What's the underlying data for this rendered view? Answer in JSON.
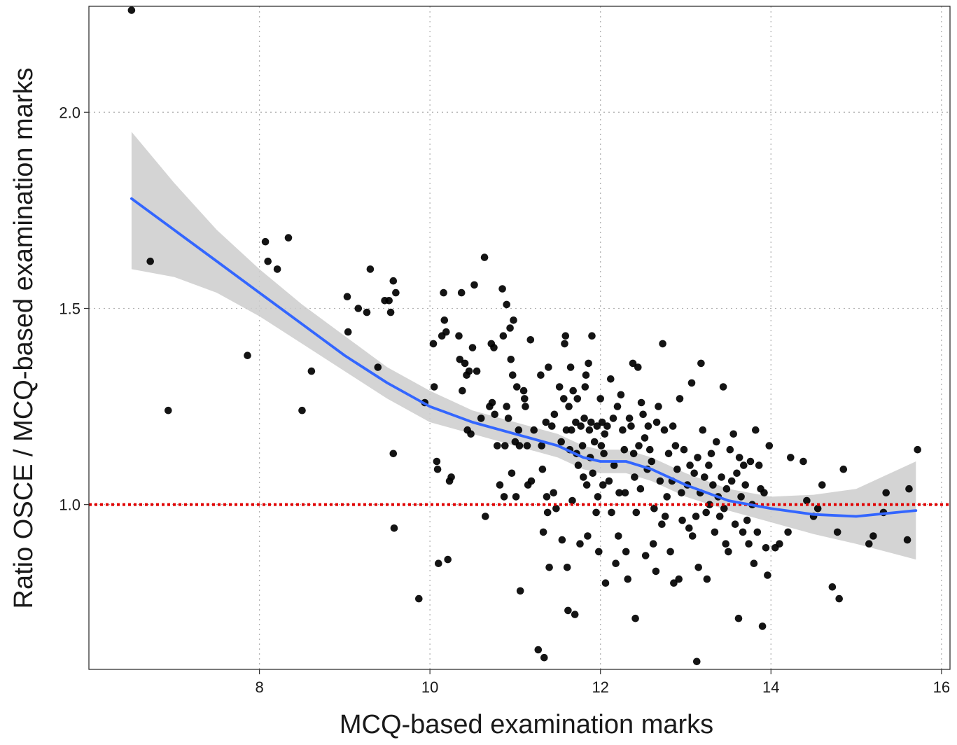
{
  "chart_data": {
    "type": "scatter",
    "title": "",
    "xlabel": "MCQ-based examination marks",
    "ylabel": "Ratio OSCE / MCQ-based examination marks",
    "xlim": [
      6.0,
      16.1
    ],
    "ylim": [
      0.58,
      2.27
    ],
    "x_ticks": [
      8,
      10,
      12,
      14,
      16
    ],
    "y_ticks": [
      1.0,
      1.5,
      2.0
    ],
    "x_tick_labels": [
      "8",
      "10",
      "12",
      "14",
      "16"
    ],
    "y_tick_labels": [
      "1.0",
      "1.5",
      "2.0"
    ],
    "grid": "dotted",
    "reference_line": {
      "y": 1.0,
      "color": "#e00000",
      "style": "dotted"
    },
    "colors": {
      "points": "#000000",
      "smooth_line": "#3366ff",
      "confidence_band": "#cccccc"
    },
    "points": [
      [
        6.5,
        2.26
      ],
      [
        6.72,
        1.62
      ],
      [
        6.93,
        1.24
      ],
      [
        7.86,
        1.38
      ],
      [
        8.07,
        1.67
      ],
      [
        8.1,
        1.62
      ],
      [
        8.21,
        1.6
      ],
      [
        8.34,
        1.68
      ],
      [
        8.5,
        1.24
      ],
      [
        8.61,
        1.34
      ],
      [
        9.03,
        1.53
      ],
      [
        9.04,
        1.44
      ],
      [
        9.16,
        1.5
      ],
      [
        9.26,
        1.49
      ],
      [
        9.3,
        1.6
      ],
      [
        9.39,
        1.35
      ],
      [
        9.47,
        1.52
      ],
      [
        9.52,
        1.52
      ],
      [
        9.54,
        1.49
      ],
      [
        9.57,
        1.57
      ],
      [
        9.6,
        1.54
      ],
      [
        9.57,
        1.13
      ],
      [
        9.58,
        0.94
      ],
      [
        9.87,
        0.76
      ],
      [
        9.94,
        1.26
      ],
      [
        10.04,
        1.41
      ],
      [
        10.05,
        1.3
      ],
      [
        10.08,
        1.11
      ],
      [
        10.09,
        1.09
      ],
      [
        10.1,
        0.85
      ],
      [
        10.14,
        1.43
      ],
      [
        10.16,
        1.54
      ],
      [
        10.17,
        1.47
      ],
      [
        10.19,
        1.44
      ],
      [
        10.21,
        0.86
      ],
      [
        10.23,
        1.06
      ],
      [
        10.25,
        1.07
      ],
      [
        10.34,
        1.43
      ],
      [
        10.35,
        1.37
      ],
      [
        10.37,
        1.54
      ],
      [
        10.38,
        1.29
      ],
      [
        10.41,
        1.36
      ],
      [
        10.43,
        1.33
      ],
      [
        10.44,
        1.19
      ],
      [
        10.46,
        1.34
      ],
      [
        10.48,
        1.18
      ],
      [
        10.5,
        1.4
      ],
      [
        10.52,
        1.56
      ],
      [
        10.55,
        1.34
      ],
      [
        10.6,
        1.22
      ],
      [
        10.64,
        1.63
      ],
      [
        10.65,
        0.97
      ],
      [
        10.7,
        1.25
      ],
      [
        10.72,
        1.41
      ],
      [
        10.73,
        1.26
      ],
      [
        10.75,
        1.4
      ],
      [
        10.76,
        1.23
      ],
      [
        10.79,
        1.15
      ],
      [
        10.82,
        1.05
      ],
      [
        10.85,
        1.55
      ],
      [
        10.86,
        1.43
      ],
      [
        10.87,
        1.02
      ],
      [
        10.88,
        1.15
      ],
      [
        10.9,
        1.51
      ],
      [
        10.9,
        1.25
      ],
      [
        10.92,
        1.22
      ],
      [
        10.94,
        1.45
      ],
      [
        10.95,
        1.37
      ],
      [
        10.96,
        1.08
      ],
      [
        10.97,
        1.33
      ],
      [
        10.98,
        1.47
      ],
      [
        11.0,
        1.16
      ],
      [
        11.01,
        1.02
      ],
      [
        11.02,
        1.3
      ],
      [
        11.04,
        1.19
      ],
      [
        11.05,
        1.15
      ],
      [
        11.06,
        0.78
      ],
      [
        11.1,
        1.29
      ],
      [
        11.11,
        1.27
      ],
      [
        11.12,
        1.25
      ],
      [
        11.14,
        1.15
      ],
      [
        11.15,
        1.05
      ],
      [
        11.18,
        1.42
      ],
      [
        11.19,
        1.06
      ],
      [
        11.22,
        1.19
      ],
      [
        11.27,
        0.63
      ],
      [
        11.3,
        1.33
      ],
      [
        11.31,
        1.15
      ],
      [
        11.32,
        1.09
      ],
      [
        11.33,
        0.93
      ],
      [
        11.34,
        0.61
      ],
      [
        11.36,
        1.21
      ],
      [
        11.37,
        1.02
      ],
      [
        11.38,
        0.98
      ],
      [
        11.39,
        1.35
      ],
      [
        11.4,
        0.84
      ],
      [
        11.43,
        1.2
      ],
      [
        11.45,
        1.03
      ],
      [
        11.46,
        1.23
      ],
      [
        11.48,
        0.99
      ],
      [
        11.52,
        1.3
      ],
      [
        11.54,
        1.16
      ],
      [
        11.55,
        0.91
      ],
      [
        11.57,
        1.27
      ],
      [
        11.58,
        1.41
      ],
      [
        11.59,
        1.43
      ],
      [
        11.6,
        1.19
      ],
      [
        11.61,
        0.84
      ],
      [
        11.62,
        0.73
      ],
      [
        11.63,
        1.25
      ],
      [
        11.64,
        1.14
      ],
      [
        11.65,
        1.35
      ],
      [
        11.66,
        1.19
      ],
      [
        11.67,
        1.01
      ],
      [
        11.68,
        1.29
      ],
      [
        11.7,
        0.72
      ],
      [
        11.71,
        1.21
      ],
      [
        11.72,
        1.13
      ],
      [
        11.73,
        1.27
      ],
      [
        11.74,
        1.1
      ],
      [
        11.76,
        0.9
      ],
      [
        11.77,
        1.2
      ],
      [
        11.79,
        1.15
      ],
      [
        11.8,
        1.07
      ],
      [
        11.81,
        1.22
      ],
      [
        11.82,
        1.3
      ],
      [
        11.83,
        1.33
      ],
      [
        11.84,
        1.05
      ],
      [
        11.85,
        0.92
      ],
      [
        11.86,
        1.36
      ],
      [
        11.87,
        1.19
      ],
      [
        11.88,
        1.12
      ],
      [
        11.89,
        1.21
      ],
      [
        11.9,
        1.43
      ],
      [
        11.91,
        1.08
      ],
      [
        11.93,
        1.16
      ],
      [
        11.95,
        0.98
      ],
      [
        11.96,
        1.2
      ],
      [
        11.97,
        1.02
      ],
      [
        11.98,
        0.88
      ],
      [
        12.0,
        1.27
      ],
      [
        12.01,
        1.15
      ],
      [
        12.02,
        1.21
      ],
      [
        12.03,
        1.05
      ],
      [
        12.04,
        1.13
      ],
      [
        12.05,
        1.18
      ],
      [
        12.06,
        0.8
      ],
      [
        12.08,
        1.2
      ],
      [
        12.1,
        1.06
      ],
      [
        12.12,
        1.32
      ],
      [
        12.13,
        0.98
      ],
      [
        12.15,
        1.22
      ],
      [
        12.16,
        1.1
      ],
      [
        12.18,
        0.85
      ],
      [
        12.2,
        1.25
      ],
      [
        12.21,
        0.92
      ],
      [
        12.22,
        1.03
      ],
      [
        12.24,
        1.28
      ],
      [
        12.26,
        1.19
      ],
      [
        12.28,
        1.14
      ],
      [
        12.29,
        1.03
      ],
      [
        12.3,
        0.88
      ],
      [
        12.32,
        0.81
      ],
      [
        12.34,
        1.22
      ],
      [
        12.36,
        1.2
      ],
      [
        12.38,
        1.36
      ],
      [
        12.39,
        1.13
      ],
      [
        12.4,
        1.07
      ],
      [
        12.41,
        0.71
      ],
      [
        12.42,
        0.98
      ],
      [
        12.44,
        1.35
      ],
      [
        12.45,
        1.15
      ],
      [
        12.47,
        1.04
      ],
      [
        12.48,
        1.26
      ],
      [
        12.5,
        1.23
      ],
      [
        12.52,
        1.17
      ],
      [
        12.53,
        0.87
      ],
      [
        12.55,
        1.09
      ],
      [
        12.56,
        1.2
      ],
      [
        12.58,
        1.14
      ],
      [
        12.6,
        1.11
      ],
      [
        12.62,
        0.9
      ],
      [
        12.63,
        0.99
      ],
      [
        12.65,
        0.83
      ],
      [
        12.66,
        1.21
      ],
      [
        12.68,
        1.25
      ],
      [
        12.7,
        1.06
      ],
      [
        12.72,
        0.95
      ],
      [
        12.73,
        1.41
      ],
      [
        12.75,
        1.19
      ],
      [
        12.76,
        0.97
      ],
      [
        12.78,
        1.02
      ],
      [
        12.8,
        1.13
      ],
      [
        12.82,
        0.88
      ],
      [
        12.84,
        1.06
      ],
      [
        12.85,
        1.2
      ],
      [
        12.86,
        0.8
      ],
      [
        12.88,
        1.15
      ],
      [
        12.9,
        1.09
      ],
      [
        12.92,
        0.81
      ],
      [
        12.93,
        1.27
      ],
      [
        12.95,
        1.03
      ],
      [
        12.96,
        0.96
      ],
      [
        12.98,
        1.14
      ],
      [
        13.02,
        1.05
      ],
      [
        13.04,
        0.94
      ],
      [
        13.05,
        1.1
      ],
      [
        13.07,
        1.31
      ],
      [
        13.08,
        0.92
      ],
      [
        13.1,
        1.08
      ],
      [
        13.12,
        0.97
      ],
      [
        13.13,
        0.6
      ],
      [
        13.14,
        1.12
      ],
      [
        13.15,
        0.84
      ],
      [
        13.17,
        1.03
      ],
      [
        13.18,
        1.36
      ],
      [
        13.2,
        1.19
      ],
      [
        13.22,
        1.07
      ],
      [
        13.24,
        0.98
      ],
      [
        13.25,
        0.81
      ],
      [
        13.27,
        1.1
      ],
      [
        13.28,
        1.0
      ],
      [
        13.3,
        1.13
      ],
      [
        13.32,
        1.05
      ],
      [
        13.34,
        0.93
      ],
      [
        13.36,
        1.16
      ],
      [
        13.38,
        1.02
      ],
      [
        13.4,
        0.97
      ],
      [
        13.42,
        1.07
      ],
      [
        13.44,
        1.3
      ],
      [
        13.45,
        0.99
      ],
      [
        13.47,
        0.9
      ],
      [
        13.48,
        1.04
      ],
      [
        13.5,
        0.88
      ],
      [
        13.52,
        1.14
      ],
      [
        13.54,
        1.06
      ],
      [
        13.56,
        1.18
      ],
      [
        13.58,
        0.95
      ],
      [
        13.6,
        1.08
      ],
      [
        13.62,
        0.71
      ],
      [
        13.63,
        1.12
      ],
      [
        13.65,
        1.02
      ],
      [
        13.67,
        0.93
      ],
      [
        13.68,
        1.1
      ],
      [
        13.7,
        1.05
      ],
      [
        13.72,
        0.96
      ],
      [
        13.74,
        0.9
      ],
      [
        13.76,
        1.11
      ],
      [
        13.78,
        1.0
      ],
      [
        13.8,
        0.85
      ],
      [
        13.82,
        1.19
      ],
      [
        13.84,
        0.93
      ],
      [
        13.86,
        1.1
      ],
      [
        13.88,
        1.04
      ],
      [
        13.9,
        0.69
      ],
      [
        13.92,
        1.03
      ],
      [
        13.94,
        0.89
      ],
      [
        13.96,
        0.82
      ],
      [
        13.98,
        1.15
      ],
      [
        14.05,
        0.89
      ],
      [
        14.1,
        0.9
      ],
      [
        14.2,
        0.93
      ],
      [
        14.23,
        1.12
      ],
      [
        14.38,
        1.11
      ],
      [
        14.42,
        1.01
      ],
      [
        14.5,
        0.97
      ],
      [
        14.55,
        0.99
      ],
      [
        14.6,
        1.05
      ],
      [
        14.72,
        0.79
      ],
      [
        14.8,
        0.76
      ],
      [
        14.85,
        1.09
      ],
      [
        14.78,
        0.93
      ],
      [
        15.15,
        0.9
      ],
      [
        15.2,
        0.92
      ],
      [
        15.32,
        0.98
      ],
      [
        15.35,
        1.03
      ],
      [
        15.6,
        0.91
      ],
      [
        15.62,
        1.04
      ],
      [
        15.72,
        1.14
      ]
    ],
    "smooth": {
      "x": [
        6.5,
        7.0,
        7.5,
        8.0,
        8.5,
        9.0,
        9.5,
        10.0,
        10.5,
        11.0,
        11.5,
        11.8,
        12.0,
        12.3,
        12.6,
        13.0,
        13.5,
        14.0,
        14.5,
        15.0,
        15.7
      ],
      "y": [
        1.78,
        1.7,
        1.62,
        1.54,
        1.46,
        1.38,
        1.31,
        1.25,
        1.21,
        1.18,
        1.15,
        1.12,
        1.11,
        1.11,
        1.09,
        1.05,
        1.01,
        0.99,
        0.975,
        0.97,
        0.985
      ],
      "lower": [
        1.6,
        1.58,
        1.54,
        1.48,
        1.41,
        1.34,
        1.27,
        1.21,
        1.18,
        1.15,
        1.12,
        1.09,
        1.08,
        1.08,
        1.06,
        1.02,
        0.985,
        0.955,
        0.925,
        0.9,
        0.86
      ],
      "upper": [
        1.95,
        1.82,
        1.7,
        1.6,
        1.51,
        1.43,
        1.35,
        1.29,
        1.24,
        1.21,
        1.18,
        1.15,
        1.14,
        1.14,
        1.12,
        1.08,
        1.04,
        1.02,
        1.025,
        1.04,
        1.11
      ]
    }
  }
}
